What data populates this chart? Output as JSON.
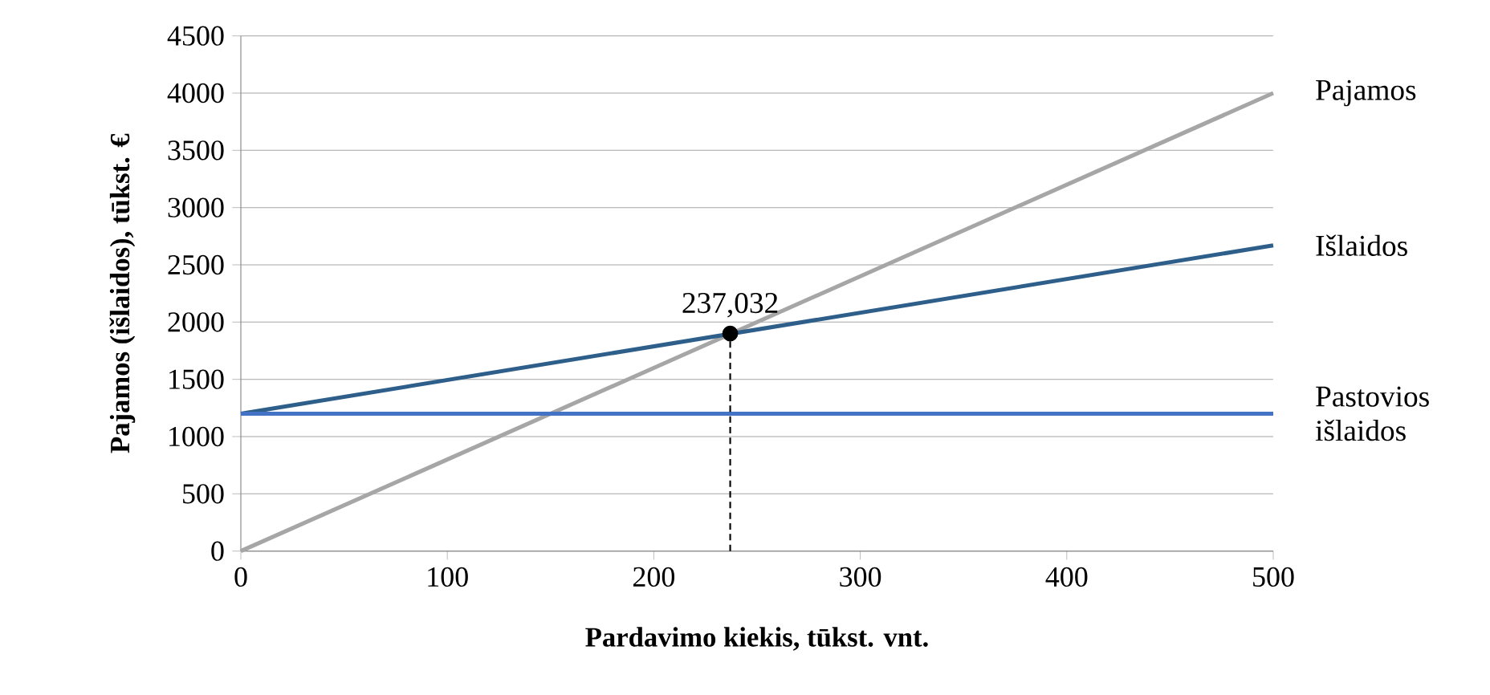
{
  "chart_data": {
    "type": "line",
    "xlabel": "Pardavimo kiekis, tūkst. vnt.",
    "ylabel": "Pajamos (išlaidos), tūkst. €",
    "x": [
      0,
      500
    ],
    "series": [
      {
        "name": "Pajamos",
        "color": "#a6a6a6",
        "values": [
          0,
          4000
        ]
      },
      {
        "name": "Išlaidos",
        "color": "#2e5f8a",
        "values": [
          1200,
          2670
        ]
      },
      {
        "name": "Pastovios išlaidos",
        "color": "#4472c4",
        "values": [
          1200,
          1200
        ]
      },
      {
        "type": "lollipop",
        "color": "#000000",
        "x": [
          237
        ],
        "values": [
          1900
        ],
        "marker": "circle",
        "line_style": "dashed"
      }
    ],
    "annotations": [
      {
        "text": "237,032",
        "x": 237,
        "y": 1900
      }
    ],
    "xlim": [
      0,
      500
    ],
    "ylim": [
      0,
      4500
    ],
    "xticks": [
      0,
      100,
      200,
      300,
      400,
      500
    ],
    "yticks": [
      0,
      500,
      1000,
      1500,
      2000,
      2500,
      3000,
      3500,
      4000,
      4500
    ],
    "grid": "y"
  }
}
